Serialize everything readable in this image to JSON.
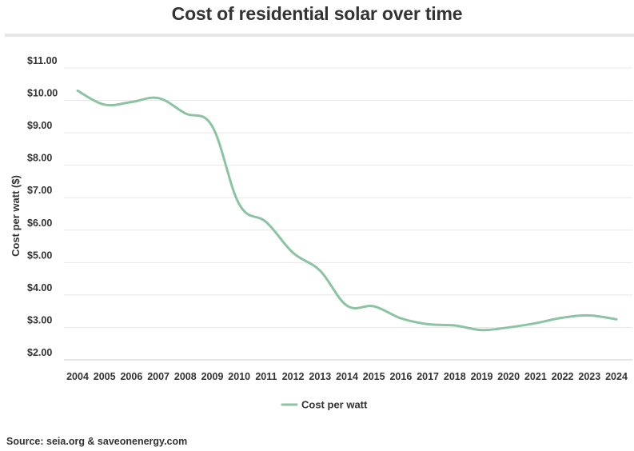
{
  "chart_data": {
    "type": "line",
    "title": "Cost of residential solar over time",
    "ylabel": "Cost per watt ($)",
    "xlabel": "",
    "ylim": [
      2.0,
      11.0
    ],
    "yticks": [
      "$2.00",
      "$3.00",
      "$4.00",
      "$5.00",
      "$6.00",
      "$7.00",
      "$8.00",
      "$9.00",
      "$10.00",
      "$11.00"
    ],
    "categories": [
      "2004",
      "2005",
      "2006",
      "2007",
      "2008",
      "2009",
      "2010",
      "2011",
      "2012",
      "2013",
      "2014",
      "2015",
      "2016",
      "2017",
      "2018",
      "2019",
      "2020",
      "2021",
      "2022",
      "2023",
      "2024"
    ],
    "series": [
      {
        "name": "Cost per watt",
        "color": "#8cc3a3",
        "values": [
          10.3,
          9.87,
          9.95,
          10.07,
          9.6,
          9.2,
          6.8,
          6.25,
          5.3,
          4.75,
          3.67,
          3.65,
          3.28,
          3.1,
          3.06,
          2.92,
          3.0,
          3.13,
          3.3,
          3.37,
          3.25
        ]
      }
    ],
    "grid": true,
    "legend": "bottom-center"
  },
  "source": "Source: seia.org & saveonenergy.com"
}
